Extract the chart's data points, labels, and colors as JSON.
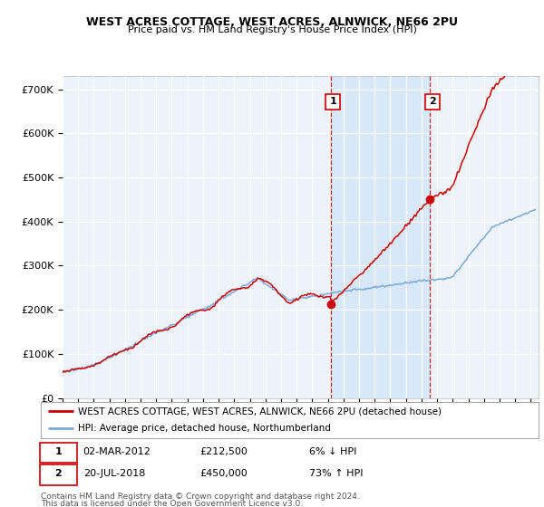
{
  "title1": "WEST ACRES COTTAGE, WEST ACRES, ALNWICK, NE66 2PU",
  "title2": "Price paid vs. HM Land Registry's House Price Index (HPI)",
  "ylabel_ticks": [
    "£0",
    "£100K",
    "£200K",
    "£300K",
    "£400K",
    "£500K",
    "£600K",
    "£700K"
  ],
  "ylim": [
    0,
    730000
  ],
  "xlim_start": 1995.0,
  "xlim_end": 2025.5,
  "transaction1_x": 2012.17,
  "transaction1_y": 212500,
  "transaction2_x": 2018.55,
  "transaction2_y": 450000,
  "hpi_color": "#7aaadd",
  "price_color": "#cc0000",
  "vline_color": "#cc0000",
  "shade_color": "#d8e8f8",
  "bg_color": "#edf2fb",
  "legend_label1": "WEST ACRES COTTAGE, WEST ACRES, ALNWICK, NE66 2PU (detached house)",
  "legend_label2": "HPI: Average price, detached house, Northumberland",
  "note1_num": "1",
  "note1_date": "02-MAR-2012",
  "note1_price": "£212,500",
  "note1_pct": "6% ↓ HPI",
  "note2_num": "2",
  "note2_date": "20-JUL-2018",
  "note2_price": "£450,000",
  "note2_pct": "73% ↑ HPI",
  "footer": "Contains HM Land Registry data © Crown copyright and database right 2024.\nThis data is licensed under the Open Government Licence v3.0."
}
